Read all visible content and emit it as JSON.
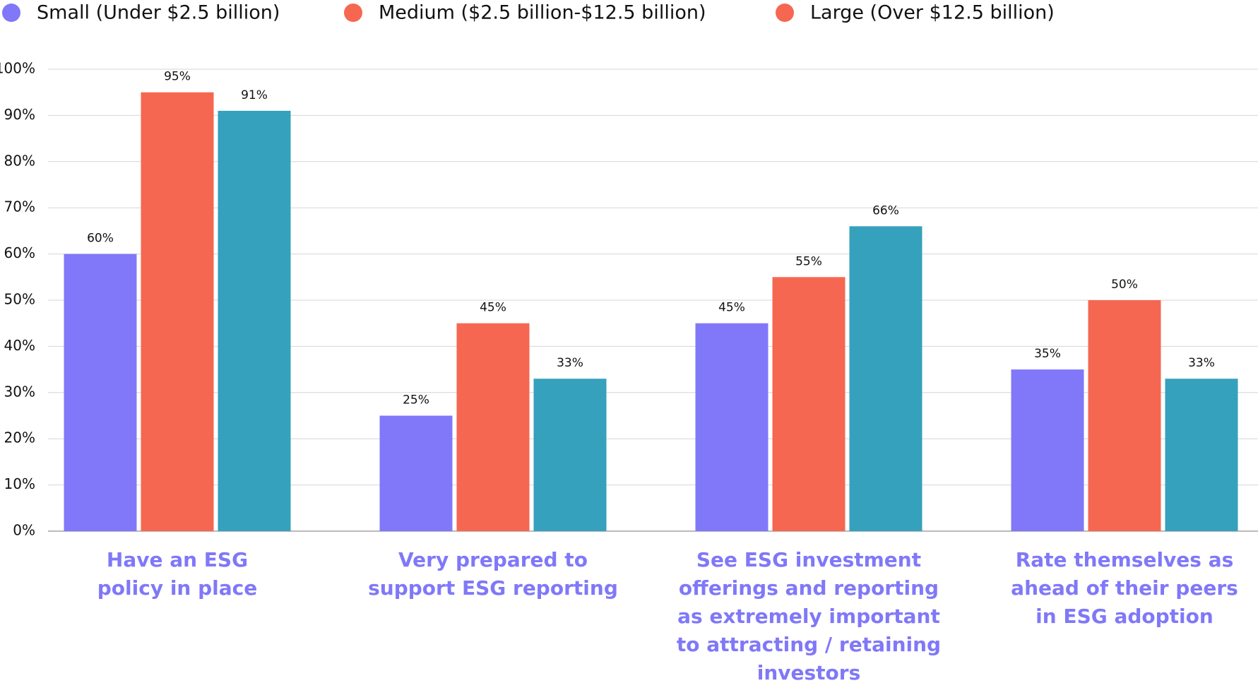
{
  "chart_data": {
    "type": "bar",
    "categories": [
      "Have an ESG\npolicy in place",
      "Very prepared to\nsupport ESG reporting",
      "See ESG investment\nofferings and reporting\nas extremely important\nto attracting / retaining\ninvestors",
      "Rate themselves as\nahead of their peers\nin ESG adoption"
    ],
    "series": [
      {
        "name": "Small (Under $2.5 billion)",
        "color": "#8078f8",
        "legend_color": "#8078f8",
        "values": [
          60,
          25,
          45,
          35
        ],
        "value_labels": [
          "60%",
          "25%",
          "45%",
          "35%"
        ]
      },
      {
        "name": "Medium ($2.5 billion-$12.5 billion)",
        "color": "#f66751",
        "legend_color": "#f66751",
        "values": [
          95,
          45,
          55,
          50
        ],
        "value_labels": [
          "95%",
          "45%",
          "55%",
          "50%"
        ]
      },
      {
        "name": "Large (Over $12.5 billion)",
        "color": "#35a1bc",
        "legend_color": "#f66751",
        "values": [
          91,
          33,
          66,
          33
        ],
        "value_labels": [
          "91%",
          "33%",
          "66%",
          "33%"
        ]
      }
    ],
    "ylim": [
      0,
      100
    ],
    "yticks": [
      {
        "value": 0,
        "label": "0%"
      },
      {
        "value": 10,
        "label": "10%"
      },
      {
        "value": 20,
        "label": "20%"
      },
      {
        "value": 30,
        "label": "30%"
      },
      {
        "value": 40,
        "label": "40%"
      },
      {
        "value": 50,
        "label": "50%"
      },
      {
        "value": 60,
        "label": "60%"
      },
      {
        "value": 70,
        "label": "70%"
      },
      {
        "value": 80,
        "label": "80%"
      },
      {
        "value": 90,
        "label": "90%"
      },
      {
        "value": 100,
        "label": "100%"
      }
    ],
    "grid": true,
    "legend": "top"
  }
}
